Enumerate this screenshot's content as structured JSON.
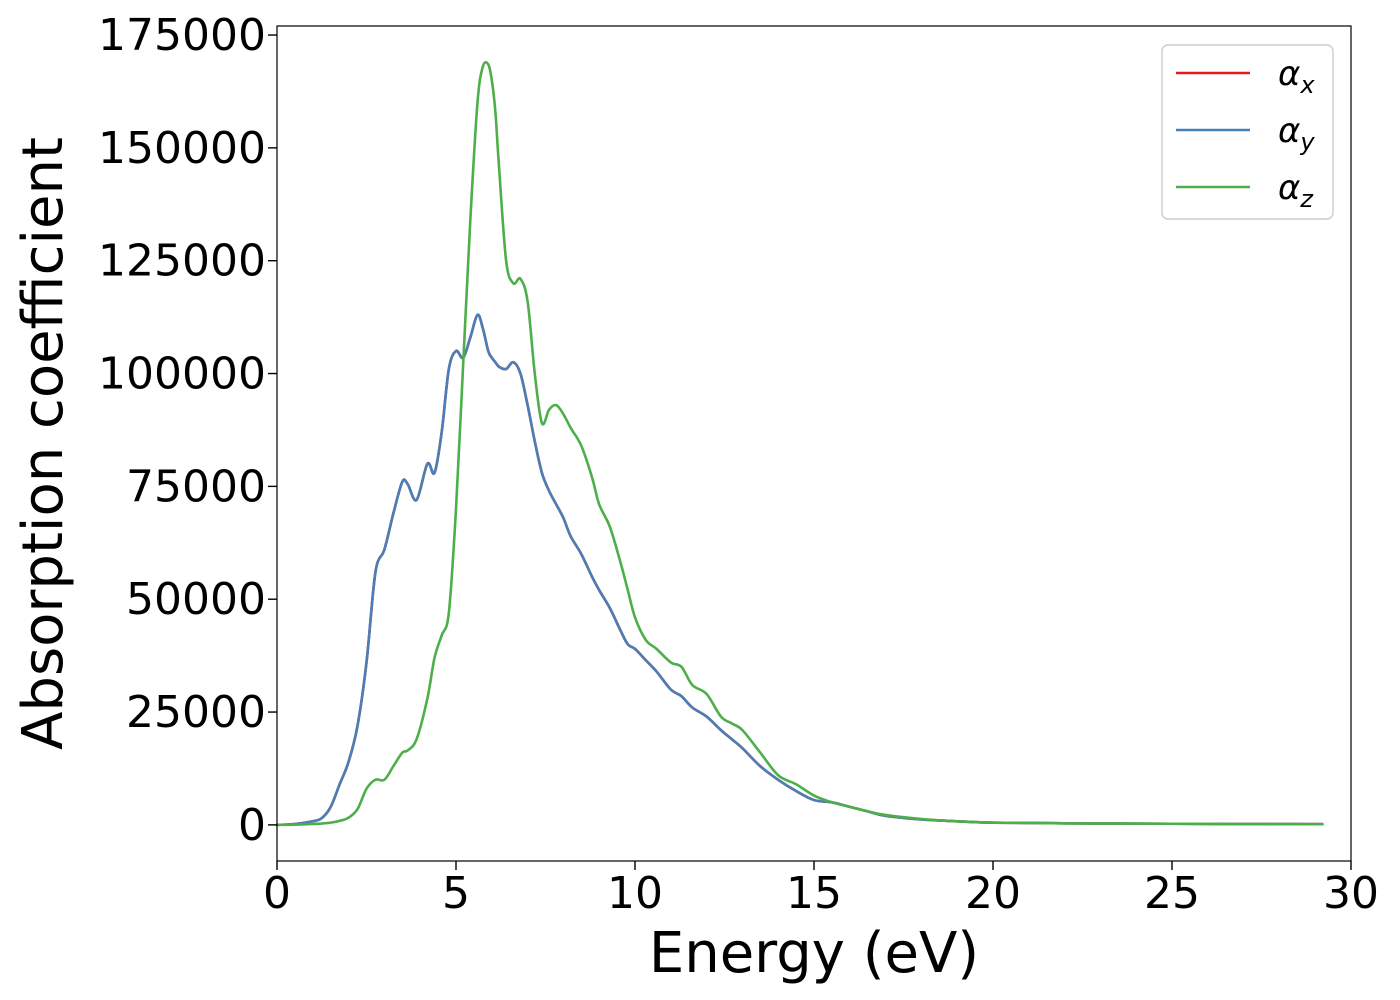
{
  "chart_data": {
    "type": "line",
    "xlabel": "Energy (eV)",
    "ylabel": "Absorption coefficient",
    "xlim": [
      0,
      30
    ],
    "ylim": [
      -8000,
      177000
    ],
    "xticks": [
      0,
      5,
      10,
      15,
      20,
      25,
      30
    ],
    "yticks": [
      0,
      25000,
      50000,
      75000,
      100000,
      125000,
      150000,
      175000
    ],
    "grid": false,
    "legend_position": "top-right",
    "x": [
      0,
      0.5,
      1.0,
      1.25,
      1.5,
      1.75,
      2.0,
      2.25,
      2.5,
      2.75,
      3.0,
      3.25,
      3.5,
      3.65,
      3.9,
      4.2,
      4.4,
      4.6,
      4.8,
      5.0,
      5.2,
      5.4,
      5.6,
      5.75,
      5.9,
      6.0,
      6.1,
      6.2,
      6.4,
      6.6,
      6.8,
      7.0,
      7.2,
      7.4,
      7.6,
      7.8,
      8.0,
      8.2,
      8.5,
      8.8,
      9.0,
      9.3,
      9.6,
      9.8,
      10.0,
      10.3,
      10.6,
      11.0,
      11.3,
      11.6,
      12.0,
      12.4,
      12.7,
      13.0,
      13.5,
      14.0,
      14.5,
      15.0,
      15.5,
      16.0,
      16.5,
      17.0,
      18.0,
      19.0,
      20.0,
      22.0,
      25.0,
      27.0,
      29.2
    ],
    "series": [
      {
        "name": "αx",
        "label_base": "α",
        "label_sub": "x",
        "color": "#e41a1c",
        "values": [
          0,
          200,
          800,
          1500,
          4000,
          9000,
          14000,
          22000,
          36000,
          56000,
          61000,
          69000,
          76000,
          75500,
          72000,
          80000,
          78000,
          87000,
          101000,
          105000,
          103500,
          108000,
          113000,
          110000,
          105000,
          103500,
          102500,
          101500,
          101000,
          102500,
          100000,
          93000,
          85000,
          78000,
          74000,
          71000,
          68000,
          64000,
          60000,
          55000,
          52000,
          48000,
          43000,
          40000,
          39000,
          36500,
          34000,
          30000,
          28500,
          26000,
          24000,
          21000,
          19000,
          17000,
          13000,
          10000,
          7500,
          5500,
          5000,
          4000,
          3000,
          2000,
          1200,
          800,
          500,
          350,
          250,
          200,
          150
        ]
      },
      {
        "name": "αy",
        "label_base": "α",
        "label_sub": "y",
        "color": "#4a7fb5",
        "values": [
          0,
          200,
          800,
          1500,
          4000,
          9000,
          14000,
          22000,
          36000,
          56000,
          61000,
          69000,
          76000,
          75500,
          72000,
          80000,
          78000,
          87000,
          101000,
          105000,
          103500,
          108000,
          113000,
          110000,
          105000,
          103500,
          102500,
          101500,
          101000,
          102500,
          100000,
          93000,
          85000,
          78000,
          74000,
          71000,
          68000,
          64000,
          60000,
          55000,
          52000,
          48000,
          43000,
          40000,
          39000,
          36500,
          34000,
          30000,
          28500,
          26000,
          24000,
          21000,
          19000,
          17000,
          13000,
          10000,
          7500,
          5500,
          5000,
          4000,
          3000,
          2000,
          1200,
          800,
          500,
          350,
          250,
          200,
          150
        ]
      },
      {
        "name": "αz",
        "label_base": "α",
        "label_sub": "z",
        "color": "#4daf4a",
        "values": [
          0,
          50,
          200,
          300,
          500,
          900,
          1600,
          3500,
          8000,
          10000,
          10000,
          13000,
          16000,
          16500,
          19000,
          28000,
          37000,
          42000,
          47000,
          70000,
          102000,
          134000,
          160000,
          168000,
          168500,
          165000,
          158000,
          146000,
          125000,
          120000,
          121000,
          116000,
          100000,
          89000,
          92000,
          93000,
          91000,
          88000,
          84000,
          77000,
          71000,
          66000,
          58000,
          52000,
          46000,
          41000,
          39000,
          36000,
          35000,
          31000,
          29000,
          24000,
          22500,
          21000,
          16000,
          11000,
          9000,
          6500,
          5000,
          4000,
          3000,
          2200,
          1300,
          800,
          500,
          350,
          250,
          200,
          150
        ]
      }
    ]
  }
}
